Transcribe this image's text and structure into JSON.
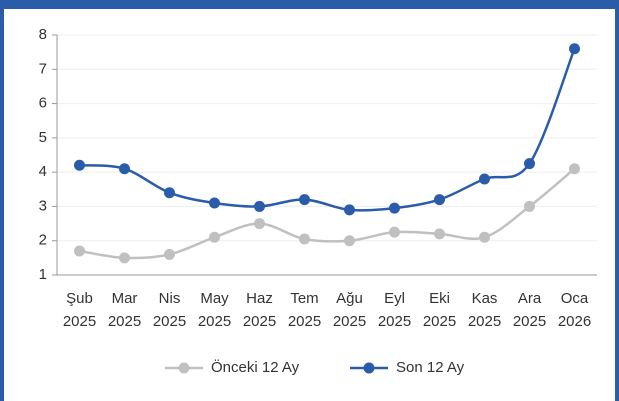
{
  "chart_data": {
    "type": "line",
    "categories": [
      [
        "Şub",
        "2025"
      ],
      [
        "Mar",
        "2025"
      ],
      [
        "Nis",
        "2025"
      ],
      [
        "May",
        "2025"
      ],
      [
        "Haz",
        "2025"
      ],
      [
        "Tem",
        "2025"
      ],
      [
        "Ağu",
        "2025"
      ],
      [
        "Eyl",
        "2025"
      ],
      [
        "Eki",
        "2025"
      ],
      [
        "Kas",
        "2025"
      ],
      [
        "Ara",
        "2025"
      ],
      [
        "Oca",
        "2026"
      ]
    ],
    "series": [
      {
        "name": "Önceki 12 Ay",
        "color": "#c0c0c0",
        "values": [
          1.7,
          1.5,
          1.6,
          2.1,
          2.5,
          2.05,
          2.0,
          2.25,
          2.2,
          2.1,
          3.0,
          4.1
        ]
      },
      {
        "name": "Son 12 Ay",
        "color": "#2a5caa",
        "values": [
          4.2,
          4.1,
          3.4,
          3.1,
          3.0,
          3.2,
          2.9,
          2.95,
          3.2,
          3.8,
          4.25,
          7.6
        ]
      }
    ],
    "ylim": [
      1,
      8
    ],
    "yticks": [
      1,
      2,
      3,
      4,
      5,
      6,
      7,
      8
    ],
    "grid": true,
    "legend": "bottom"
  }
}
